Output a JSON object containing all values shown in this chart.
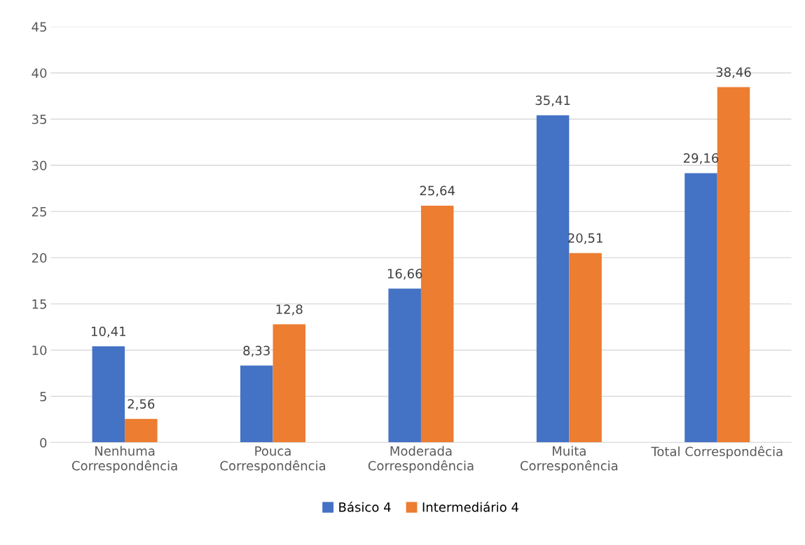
{
  "chart_data": {
    "type": "bar",
    "categories": [
      "Nenhuma\nCorrespondência",
      "Pouca\nCorrespondência",
      "Moderada\nCorrespondência",
      "Muita\nCorresponência",
      "Total Correspondêcia"
    ],
    "series": [
      {
        "name": "Básico 4",
        "color": "#4472c4",
        "values": [
          10.41,
          8.33,
          16.66,
          35.41,
          29.16
        ],
        "value_labels": [
          "10,41",
          "8,33",
          "16,66",
          "35,41",
          "29,16"
        ]
      },
      {
        "name": "Intermediário 4",
        "color": "#ed7d31",
        "values": [
          2.56,
          12.8,
          25.64,
          20.51,
          38.46
        ],
        "value_labels": [
          "2,56",
          "12,8",
          "25,64",
          "20,51",
          "38,46"
        ]
      }
    ],
    "ylim": [
      0,
      45
    ],
    "yticks": [
      0,
      5,
      10,
      15,
      20,
      25,
      30,
      35,
      40,
      45
    ],
    "grid": "y",
    "legend": "bottom"
  }
}
